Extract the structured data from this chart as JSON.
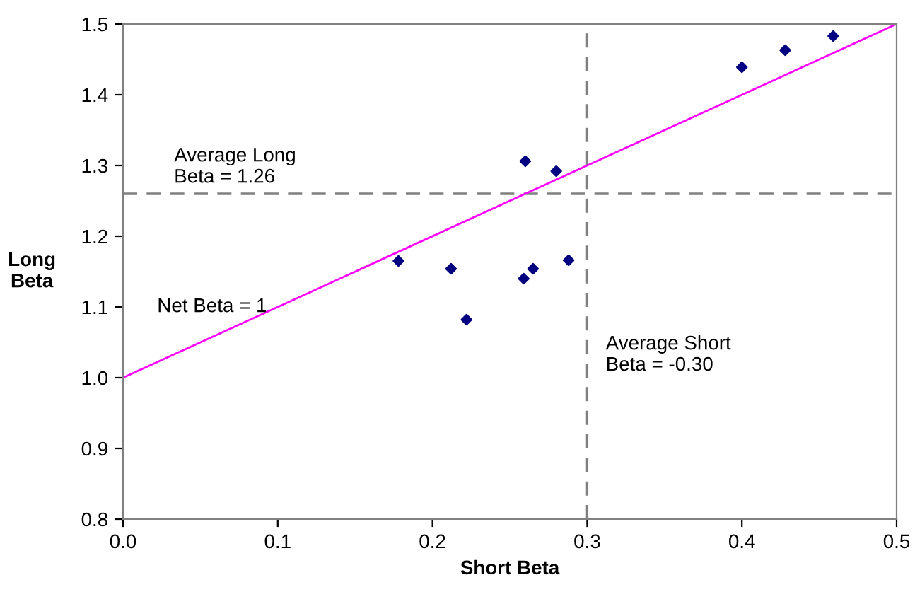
{
  "chart_data": {
    "type": "scatter",
    "xlabel": "Short Beta",
    "ylabel": "Long\nBeta",
    "xlim": [
      0,
      0.5
    ],
    "ylim": [
      0.8,
      1.5
    ],
    "xticks": [
      {
        "value": 0,
        "label": "0.0"
      },
      0.1,
      0.2,
      0.3,
      0.4,
      0.5
    ],
    "yticks": [
      {
        "value": 0.8,
        "label": "0.8"
      },
      {
        "value": 0.9,
        "label": "0.9"
      },
      {
        "value": 1.0,
        "label": "1.0"
      },
      {
        "value": 1.1,
        "label": "1.1"
      },
      {
        "value": 1.2,
        "label": "1.2"
      },
      {
        "value": 1.3,
        "label": "1.3"
      },
      {
        "value": 1.4,
        "label": "1.4"
      },
      {
        "value": 1.5,
        "label": "1.5"
      }
    ],
    "grid": false,
    "legend": false,
    "marker": "diamond",
    "series": [
      {
        "color": "#000080",
        "x": [
          0.178,
          0.212,
          0.222,
          0.259,
          0.265,
          0.288,
          0.26,
          0.28,
          0.4,
          0.428,
          0.459
        ],
        "values": [
          1.165,
          1.154,
          1.082,
          1.14,
          1.154,
          1.166,
          1.306,
          1.292,
          1.439,
          1.463,
          1.483
        ]
      },
      {
        "type": "line",
        "color": "#ff00ff",
        "marker": "none",
        "x": [
          0,
          0.5
        ],
        "values": [
          1.0,
          1.5
        ]
      }
    ],
    "ref_lines": [
      {
        "axis": "x",
        "value": 0.3,
        "color": "#808080",
        "line_style": "dashed"
      },
      {
        "axis": "y",
        "value": 1.26,
        "color": "#808080",
        "line_style": "dashed"
      }
    ],
    "annotations": [
      {
        "text": "Average Long\nBeta = 1.26",
        "y": 1.26
      },
      {
        "text": "Net Beta = 1",
        "x": 0.1,
        "y": 1.1
      },
      {
        "text": "Average Short\nBeta = -0.30",
        "x": 0.3
      }
    ]
  }
}
